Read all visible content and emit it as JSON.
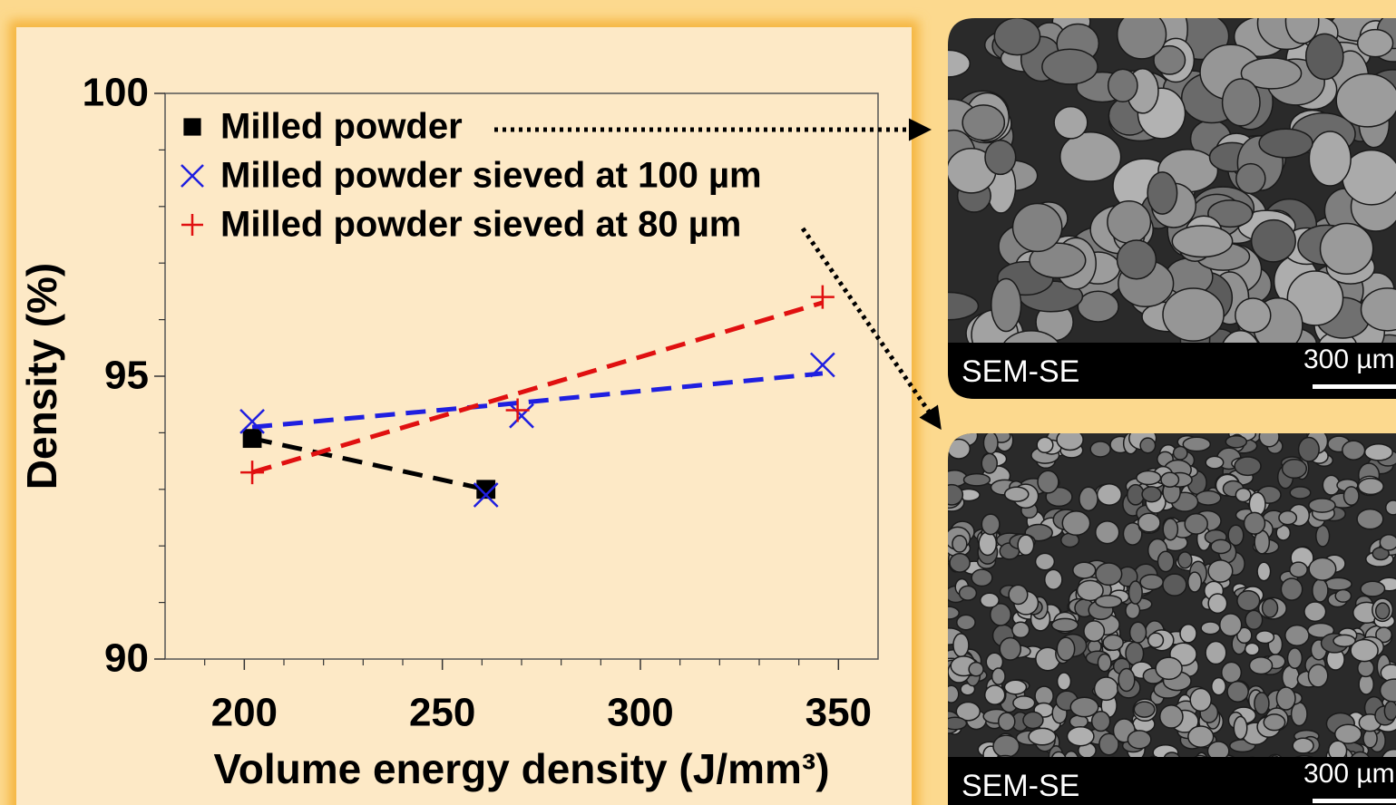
{
  "chart_data": {
    "type": "scatter",
    "xlabel": "Volume energy density (J/mm³)",
    "ylabel": "Density (%)",
    "xlim": [
      180,
      360
    ],
    "ylim": [
      90,
      100
    ],
    "xticks": [
      200,
      250,
      300,
      350
    ],
    "yticks": [
      90,
      95,
      100
    ],
    "xminor": [
      190,
      210,
      220,
      230,
      240,
      260,
      270,
      280,
      290,
      310,
      320,
      330,
      340
    ],
    "yminor": [
      91,
      92,
      93,
      94,
      96,
      97,
      98,
      99
    ],
    "legend": "upper left",
    "series": [
      {
        "name": "Milled powder",
        "color": "#000000",
        "marker": "square",
        "x": [
          202,
          261
        ],
        "values": [
          93.9,
          93.0
        ],
        "trend_x": [
          202,
          261
        ],
        "trend_values": [
          93.9,
          93.0
        ]
      },
      {
        "name": "Milled powder sieved at 100 µm",
        "color": "#1f1fe0",
        "marker": "x",
        "x": [
          202,
          261,
          270,
          346
        ],
        "values": [
          94.2,
          92.9,
          94.3,
          95.2
        ],
        "trend_x": [
          202,
          265,
          346
        ],
        "trend_values": [
          94.1,
          94.5,
          95.05
        ]
      },
      {
        "name": "Milled powder sieved at 80 µm",
        "color": "#e01010",
        "marker": "plus",
        "x": [
          202,
          269,
          346
        ],
        "values": [
          93.3,
          94.4,
          96.4
        ],
        "trend_x": [
          202,
          346
        ],
        "trend_values": [
          93.3,
          96.3
        ]
      }
    ]
  },
  "images": [
    {
      "caption": "SEM-SE",
      "scale": "300 µm"
    },
    {
      "caption": "SEM-SE",
      "scale": "300 µm"
    }
  ]
}
